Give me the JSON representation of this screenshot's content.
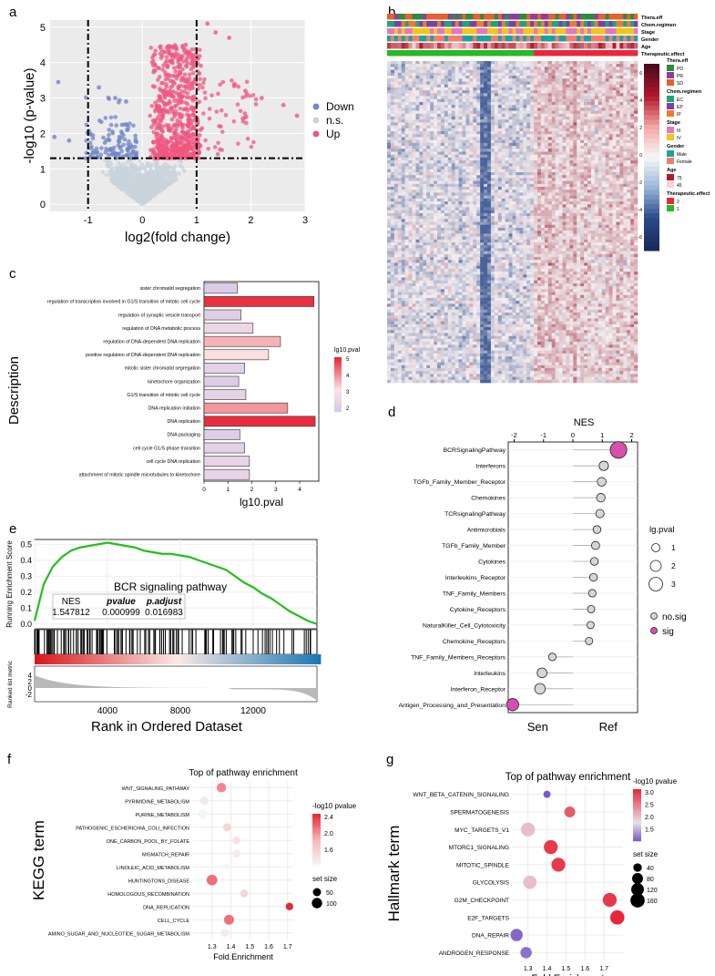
{
  "panels": {
    "a": "a",
    "b": "b",
    "c": "c",
    "d": "d",
    "e": "e",
    "f": "f",
    "g": "g"
  },
  "colors": {
    "down": "#6f86c8",
    "ns": "#c9d3dc",
    "up": "#f0577f",
    "sig": "#d94fb0",
    "red": "#e8283a",
    "purple": "#7a5cc7",
    "green": "#28b828",
    "lightgray": "#d6d6d6"
  },
  "chart_data": [
    {
      "id": "a",
      "type": "scatter",
      "xlabel": "log2(fold change)",
      "ylabel": "-log10 (p-value)",
      "xlim": [
        -1.7,
        3.0
      ],
      "ylim": [
        -0.2,
        5.2
      ],
      "xticks": [
        "-1",
        "0",
        "1",
        "2",
        "3"
      ],
      "yticks": [
        "0",
        "1",
        "2",
        "3",
        "4",
        "5"
      ],
      "thresholds": {
        "fc": [
          -1,
          1
        ],
        "p": 1.3
      },
      "legend": [
        "Down",
        "n.s.",
        "Up"
      ],
      "highlights": [
        [
          -1.55,
          3.45
        ],
        [
          -1.62,
          1.9
        ],
        [
          -1.35,
          1.8
        ],
        [
          -0.8,
          3.3
        ],
        [
          1.35,
          4.85
        ],
        [
          1.6,
          4.7
        ],
        [
          1.2,
          5.1
        ],
        [
          2.6,
          2.8
        ],
        [
          2.85,
          2.5
        ],
        [
          1.9,
          3.2
        ],
        [
          2.2,
          3.0
        ],
        [
          -0.5,
          3.0
        ],
        [
          -0.3,
          2.9
        ],
        [
          0.6,
          4.2
        ],
        [
          0.8,
          4.5
        ]
      ]
    },
    {
      "id": "b",
      "type": "heatmap",
      "annotations": [
        "Thera.eff",
        "Chem.regimen",
        "Stage",
        "Gender",
        "Age",
        "Therapeutic.effect"
      ],
      "legend_scale": {
        "ticks": [
          "6",
          "4",
          "2",
          "0",
          "-2",
          "-4",
          "-6"
        ]
      },
      "legend_groups": [
        {
          "title": "Thera.eff",
          "items": [
            {
              "label": "PD",
              "color": "#2e8b3a"
            },
            {
              "label": "PR",
              "color": "#8a3fa0"
            },
            {
              "label": "SD",
              "color": "#e8602c"
            }
          ]
        },
        {
          "title": "Chem.regimen",
          "items": [
            {
              "label": "EC",
              "color": "#21a37a"
            },
            {
              "label": "EP",
              "color": "#7b3fa6"
            },
            {
              "label": "IP",
              "color": "#f07a2a"
            }
          ]
        },
        {
          "title": "Stage",
          "items": [
            {
              "label": "III",
              "color": "#e377c2"
            },
            {
              "label": "IV",
              "color": "#f5c518"
            }
          ]
        },
        {
          "title": "Gender",
          "items": [
            {
              "label": "Male",
              "color": "#1aa39a"
            },
            {
              "label": "Female",
              "color": "#f07f6e"
            }
          ]
        },
        {
          "title": "Age",
          "items": [
            {
              "label": "75",
              "color": "#b2182b"
            },
            {
              "label": "45",
              "color": "#fbd0d6"
            }
          ]
        },
        {
          "title": "Therapeutic.effect",
          "items": [
            {
              "label": "2",
              "color": "#e8283a"
            },
            {
              "label": "1",
              "color": "#28b828"
            }
          ]
        }
      ]
    },
    {
      "id": "c",
      "type": "bar",
      "xlabel": "lg10.pval",
      "ylabel": "Description",
      "xlim": [
        0,
        4.8
      ],
      "xticks": [
        0,
        1,
        2,
        3,
        4
      ],
      "legend_title": "lg10.pval",
      "legend_ticks": [
        "5",
        "4",
        "3",
        "2"
      ],
      "categories": [
        "sister chromatid segregation",
        "regulation of transcription involved in G1/S transition of mitotic cell cycle",
        "regulation of synaptic vesicle transport",
        "regulation of DNA metabolic process",
        "regulation of DNA-dependent DNA replication",
        "positive regulation of DNA-dependent DNA replication",
        "mitotic sister chromatid segregation",
        "kinetochore organization",
        "G1/S transition of mitotic cell cycle",
        "DNA replication initiation",
        "DNA replication",
        "DNA packaging",
        "cell cycle G1/S phase transition",
        "cell cycle DNA replication",
        "attachment of mitotic spindle microtubules to kinetochore"
      ],
      "values": [
        1.4,
        4.6,
        1.55,
        2.05,
        3.2,
        2.7,
        1.7,
        1.45,
        1.75,
        3.5,
        4.65,
        1.5,
        1.7,
        1.9,
        1.9
      ]
    },
    {
      "id": "d",
      "type": "scatter",
      "title": "NES",
      "xlim": [
        -2.2,
        2.2
      ],
      "xticks": [
        "-2",
        "-1",
        "0",
        "1",
        "2"
      ],
      "xlabels": {
        "left": "Sen",
        "right": "Ref"
      },
      "size_legend_title": "lg.pval",
      "size_legend": [
        "1",
        "2",
        "3"
      ],
      "color_legend": [
        "no.sig",
        "sig"
      ],
      "categories": [
        "BCRSignalingPathway",
        "Interferons",
        "TGFb_Family_Member_Receptor",
        "Chemokines",
        "TCRsignalingPathway",
        "Antimicrobials",
        "TGFb_Family_Member",
        "Cytokines",
        "Interleukins_Receptor",
        "TNF_Family_Members",
        "Cytokine_Receptors",
        "NaturalKiller_Cell_Cytotoxicity",
        "Chemokine_Receptors",
        "TNF_Family_Members_Receptors",
        "Interleukins",
        "Interferon_Receptor",
        "Antigen_Processing_and_Presentation"
      ],
      "values": [
        1.55,
        1.05,
        0.98,
        0.95,
        0.92,
        0.82,
        0.77,
        0.73,
        0.7,
        0.66,
        0.62,
        0.6,
        0.55,
        -0.7,
        -1.05,
        -1.12,
        -2.05
      ],
      "sizes": [
        3.0,
        1.2,
        1.05,
        1.0,
        0.95,
        0.8,
        0.9,
        0.8,
        0.8,
        0.75,
        0.7,
        0.7,
        0.7,
        0.75,
        1.3,
        1.5,
        1.9
      ],
      "sig": [
        true,
        false,
        false,
        false,
        false,
        false,
        false,
        false,
        false,
        false,
        false,
        false,
        false,
        false,
        false,
        false,
        true
      ]
    },
    {
      "id": "e",
      "type": "line",
      "title": "BCR signaling pathway",
      "ylabel": "Running Enrichment Score",
      "ylabel2": "Ranked list metric",
      "xlabel": "Rank in Ordered Dataset",
      "ylim": [
        0,
        0.55
      ],
      "yticks": [
        "0.0",
        "0.1",
        "0.2",
        "0.3",
        "0.4",
        "0.5"
      ],
      "xticks": [
        "4000",
        "8000",
        "12000"
      ],
      "xlim": [
        0,
        15500
      ],
      "ylim2_ticks": [
        "4",
        "2",
        "0",
        "-2"
      ],
      "table": {
        "headers": [
          "NES",
          "pvalue",
          "p.adjust"
        ],
        "values": [
          "1.547812",
          "0.000999",
          "0.016983"
        ]
      },
      "x": [
        0,
        500,
        1000,
        1500,
        2000,
        2500,
        3000,
        3500,
        4000,
        4500,
        5000,
        5500,
        6000,
        6500,
        7000,
        7500,
        8000,
        8500,
        9000,
        9500,
        10000,
        10500,
        11000,
        11500,
        12000,
        12500,
        13000,
        13500,
        14000,
        14500,
        15000,
        15500
      ],
      "values": [
        0.02,
        0.25,
        0.36,
        0.42,
        0.46,
        0.48,
        0.49,
        0.5,
        0.51,
        0.5,
        0.49,
        0.48,
        0.46,
        0.45,
        0.44,
        0.44,
        0.43,
        0.42,
        0.4,
        0.38,
        0.36,
        0.34,
        0.3,
        0.26,
        0.23,
        0.19,
        0.16,
        0.12,
        0.08,
        0.05,
        0.02,
        0.0
      ]
    },
    {
      "id": "f",
      "type": "scatter",
      "title": "Top of pathway enrichment",
      "xlabel": "Fold.Enrichment",
      "ylabel": "KEGG term",
      "xlim": [
        1.2,
        1.73
      ],
      "xticks": [
        "1.3",
        "1.4",
        "1.5",
        "1.6",
        "1.7"
      ],
      "color_legend_title": "-log10 pvalue",
      "color_ticks": [
        "2.4",
        "2.0",
        "1.6"
      ],
      "size_legend_title": "set size",
      "size_legend": [
        "50",
        "100"
      ],
      "categories": [
        "WNT_SIGNALING_PATHWAY",
        "PYRIMIDINE_METABOLISM",
        "PURINE_METABOLISM",
        "PATHOGENIC_ESCHERICHIA_COLI_INFECTION",
        "ONE_CARBON_POOL_BY_FOLATE",
        "MISMATCH_REPAIR",
        "LINOLEIC_ACID_METABOLISM",
        "HUNTINGTONS_DISEASE",
        "HOMOLOGOUS_RECOMBINATION",
        "DNA_REPLICATION",
        "CELL_CYCLE",
        "AMINO_SUGAR_AND_NUCLEOTIDE_SUGAR_METABOLISM"
      ],
      "values": [
        1.35,
        1.26,
        1.25,
        1.38,
        1.43,
        1.43,
        1.38,
        1.3,
        1.47,
        1.71,
        1.39,
        1.37
      ],
      "sizes": [
        80,
        55,
        75,
        50,
        40,
        45,
        20,
        110,
        45,
        40,
        90,
        50
      ],
      "pvalue": [
        2.2,
        1.5,
        1.4,
        1.7,
        1.6,
        1.5,
        1.4,
        2.3,
        1.7,
        2.6,
        2.3,
        1.5
      ]
    },
    {
      "id": "g",
      "type": "scatter",
      "title": "Top of pathway enrichment",
      "xlabel": "Fold.Enrichment",
      "ylabel": "Hallmark term",
      "xlim": [
        1.22,
        1.8
      ],
      "xticks": [
        "1.3",
        "1.4",
        "1.5",
        "1.6",
        "1.7"
      ],
      "color_legend_title": "-log10 pvalue",
      "color_ticks": [
        "3.0",
        "2.5",
        "2.0",
        "1.5"
      ],
      "size_legend_title": "set size",
      "size_legend": [
        "40",
        "80",
        "120",
        "160"
      ],
      "categories": [
        "WNT_BETA_CATENIN_SIGNALING",
        "SPERMATOGENESIS",
        "MYC_TARGETS_V1",
        "MTORC1_SIGNALING",
        "MITOTIC_SPINDLE",
        "GLYCOLYSIS",
        "G2M_CHECKPOINT",
        "E2F_TARGETS",
        "DNA_REPAIR",
        "ANDROGEN_RESPONSE"
      ],
      "values": [
        1.4,
        1.52,
        1.3,
        1.42,
        1.46,
        1.31,
        1.73,
        1.77,
        1.24,
        1.29
      ],
      "sizes": [
        25,
        80,
        150,
        150,
        150,
        140,
        150,
        160,
        110,
        90
      ],
      "pvalue": [
        1.4,
        2.8,
        2.2,
        3.0,
        3.0,
        2.2,
        3.0,
        3.1,
        1.45,
        1.5
      ]
    }
  ]
}
